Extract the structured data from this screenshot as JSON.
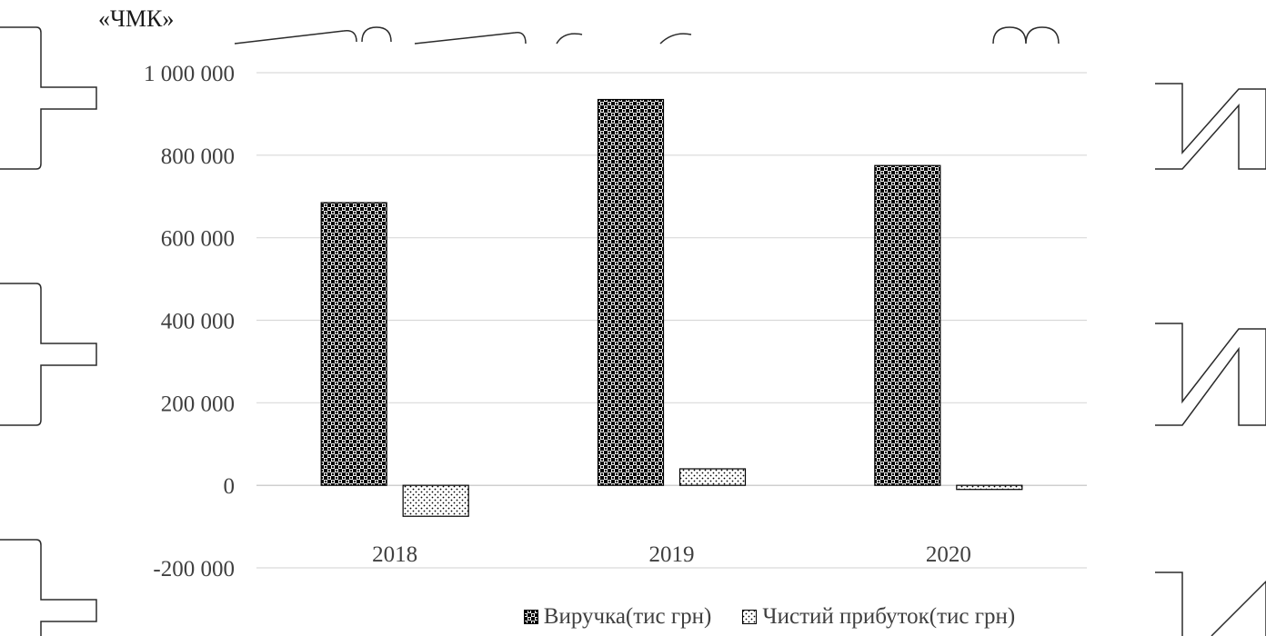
{
  "top_label": "«ЧМК»",
  "colors": {
    "grid": "#d9d9d9",
    "text": "#404040",
    "bars": "#000000"
  },
  "chart_data": {
    "type": "bar",
    "categories": [
      "2018",
      "2019",
      "2020"
    ],
    "series": [
      {
        "name": "Виручка(тис грн)",
        "values": [
          685000,
          935000,
          775000
        ],
        "pattern": "checker"
      },
      {
        "name": "Чистий прибуток(тис грн)",
        "values": [
          -75000,
          40000,
          -10000
        ],
        "pattern": "dots"
      }
    ],
    "ylim": [
      -200000,
      1000000
    ],
    "yticks": [
      -200000,
      0,
      200000,
      400000,
      600000,
      800000,
      1000000
    ],
    "ytick_labels": [
      "-200 000",
      "0",
      "200 000",
      "400 000",
      "600 000",
      "800 000",
      "1 000 000"
    ],
    "grid": true,
    "legend_position": "bottom"
  }
}
